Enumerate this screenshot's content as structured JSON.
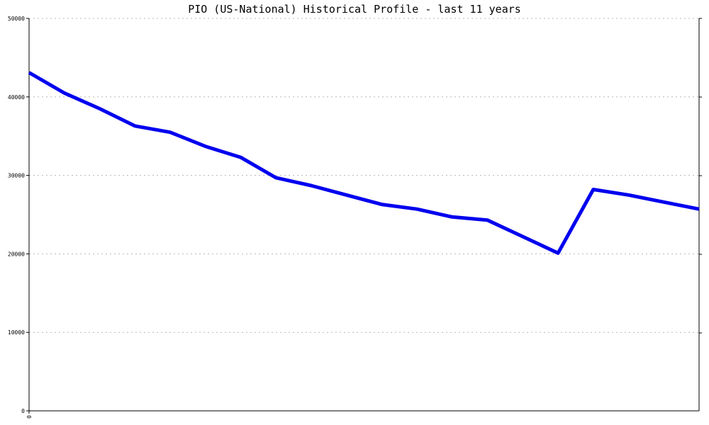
{
  "chart_data": {
    "type": "line",
    "title": "PIO (US-National) Historical Profile - last 11 years",
    "xlabel": "",
    "ylabel": "",
    "ylim": [
      0,
      50000
    ],
    "yticks": [
      "0",
      "10000",
      "20000",
      "30000",
      "40000",
      "50000"
    ],
    "xticks": [
      "0"
    ],
    "grid": true,
    "line_color": "#0000ee",
    "series": [
      {
        "values": [
          43100,
          40500,
          38500,
          36300,
          35500,
          33700,
          32300,
          29700,
          28700,
          27500,
          26300,
          25700,
          24700,
          24300,
          22200,
          20100,
          28200,
          27500,
          26600,
          25700
        ]
      }
    ]
  }
}
